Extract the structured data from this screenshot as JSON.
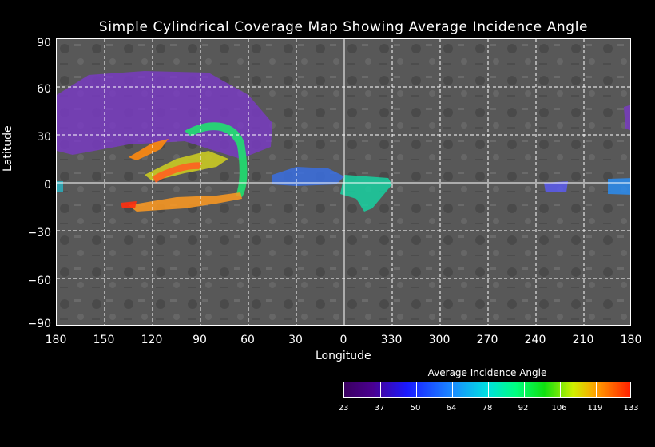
{
  "title": "Simple Cylindrical Coverage Map Showing Average Incidence Angle",
  "x_axis": {
    "label": "Longitude",
    "ticks": [
      "180",
      "150",
      "120",
      "90",
      "60",
      "30",
      "0",
      "330",
      "300",
      "270",
      "240",
      "210",
      "180"
    ]
  },
  "y_axis": {
    "label": "Latitude",
    "ticks": [
      "90",
      "60",
      "30",
      "0",
      "−30",
      "−60",
      "−90"
    ]
  },
  "colorbar": {
    "title": "Average Incidence Angle",
    "ticks": [
      "23",
      "37",
      "50",
      "64",
      "78",
      "92",
      "106",
      "119",
      "133"
    ]
  },
  "colors": {
    "background": "#000000",
    "grid": "#ffffff",
    "basemap": "#575757"
  }
}
